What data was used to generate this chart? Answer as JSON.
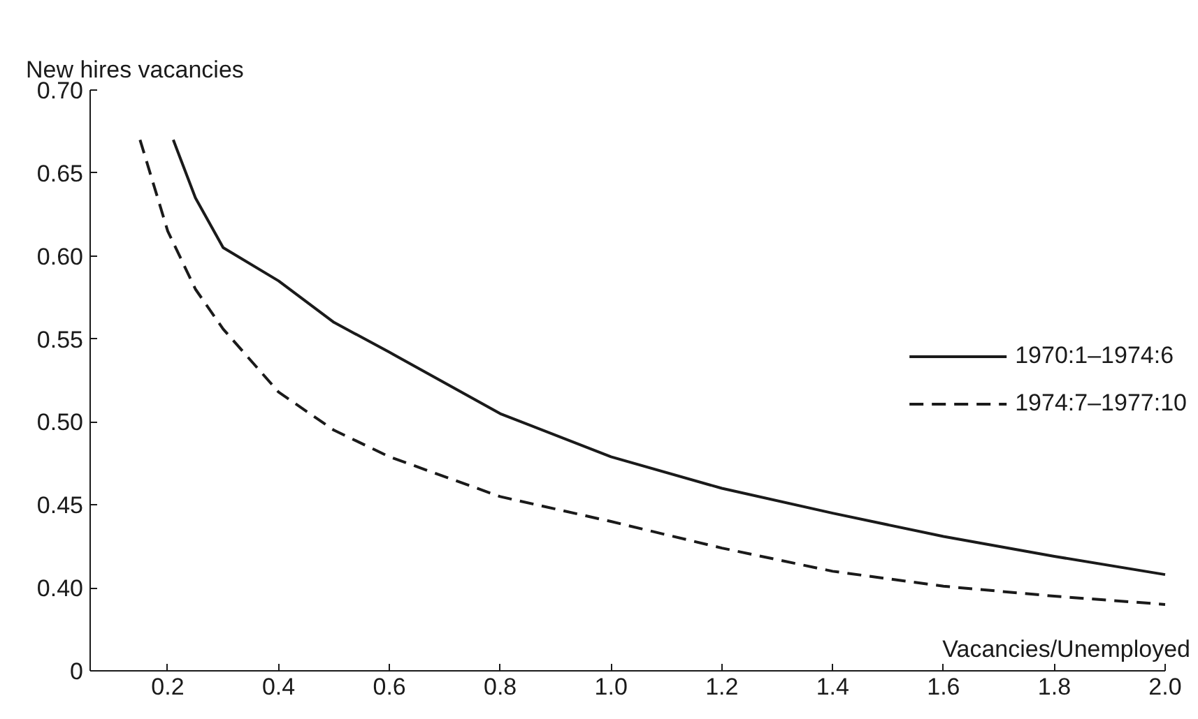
{
  "chart_data": {
    "type": "line",
    "ylabel": "New hires vacancies",
    "xlabel": "Vacancies/Unemployed",
    "xlim": [
      0.06,
      2.0
    ],
    "xticks": [
      0.2,
      0.4,
      0.6,
      0.8,
      {
        "value": 1.0,
        "label": "1.0"
      },
      1.2,
      1.4,
      1.6,
      1.8,
      {
        "value": 2.0,
        "label": "2.0"
      }
    ],
    "ylim": [
      0.35,
      0.7
    ],
    "yticks": [
      {
        "value": 0.35,
        "label": "0"
      },
      {
        "value": 0.4,
        "label": "0.40"
      },
      0.45,
      {
        "value": 0.5,
        "label": "0.50"
      },
      0.55,
      {
        "value": 0.6,
        "label": "0.60"
      },
      0.65,
      {
        "value": 0.7,
        "label": "0.70"
      }
    ],
    "grid": false,
    "legend": "right",
    "marker": "none",
    "series": [
      {
        "name": "1970:1–1974:6",
        "color": "#1a1a1a",
        "line_style": "solid",
        "x": [
          0.21,
          0.25,
          0.3,
          0.4,
          0.5,
          0.6,
          0.8,
          1.0,
          1.2,
          1.4,
          1.6,
          1.8,
          2.0
        ],
        "values": [
          0.67,
          0.635,
          0.605,
          0.585,
          0.56,
          0.542,
          0.505,
          0.479,
          0.46,
          0.445,
          0.431,
          0.419,
          0.408
        ]
      },
      {
        "name": "1974:7–1977:10",
        "color": "#1a1a1a",
        "line_style": "dashed",
        "x": [
          0.15,
          0.2,
          0.25,
          0.3,
          0.4,
          0.5,
          0.6,
          0.8,
          1.0,
          1.2,
          1.4,
          1.6,
          1.8,
          2.0
        ],
        "values": [
          0.67,
          0.615,
          0.58,
          0.556,
          0.518,
          0.495,
          0.479,
          0.455,
          0.44,
          0.424,
          0.41,
          0.401,
          0.395,
          0.39
        ]
      }
    ]
  }
}
